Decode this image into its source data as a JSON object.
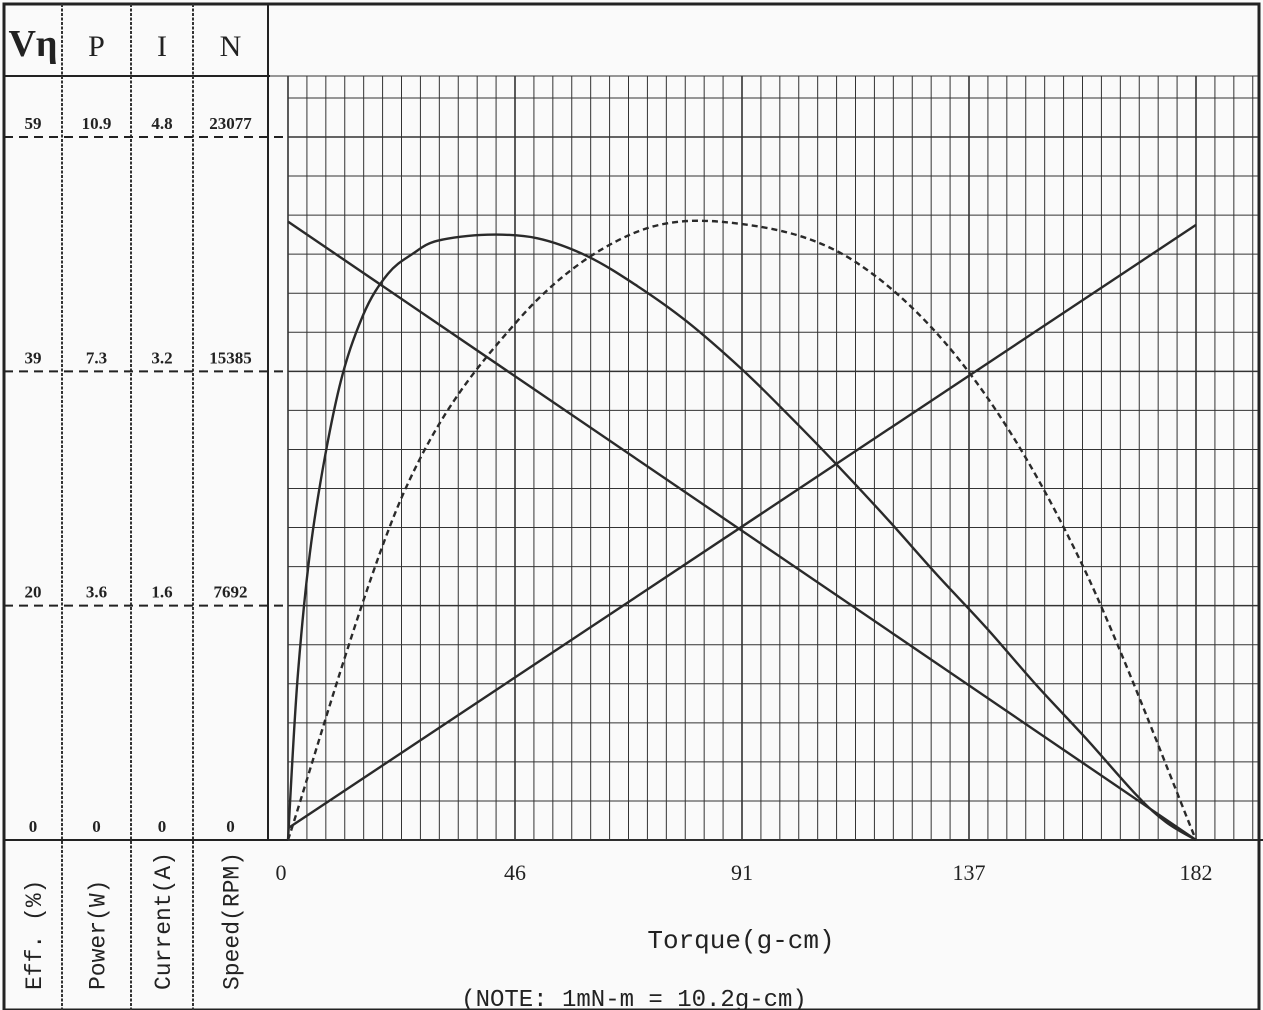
{
  "chart_data": {
    "type": "line",
    "xlabel": "Torque(g-cm)",
    "note": "(NOTE: 1mN-m = 10.2g-cm)",
    "x_ticks": [
      "0",
      "46",
      "91",
      "137",
      "182"
    ],
    "xlim": [
      0,
      182
    ],
    "axes": [
      {
        "symbol": "Vη",
        "name": "Eff. (%)",
        "ticks": [
          "0",
          "20",
          "39",
          "59"
        ],
        "max": 59
      },
      {
        "symbol": "P",
        "name": "Power(W)",
        "ticks": [
          "0",
          "3.6",
          "7.3",
          "10.9"
        ],
        "max": 10.9
      },
      {
        "symbol": "I",
        "name": "Current(A)",
        "ticks": [
          "0",
          "1.6",
          "3.2",
          "4.8"
        ],
        "max": 4.8
      },
      {
        "symbol": "N",
        "name": "Speed(RPM)",
        "ticks": [
          "0",
          "7692",
          "15385",
          "23077"
        ],
        "max": 23077
      }
    ],
    "series": [
      {
        "id": "speed",
        "axis": "Speed(RPM)",
        "style": "solid",
        "x": [
          0,
          182
        ],
        "y": [
          20300,
          0
        ]
      },
      {
        "id": "current",
        "axis": "Current(A)",
        "style": "solid",
        "x": [
          0,
          182
        ],
        "y": [
          0.08,
          4.2
        ]
      },
      {
        "id": "efficiency",
        "axis": "Eff. (%)",
        "style": "solid",
        "x": [
          0,
          2,
          5,
          10,
          15,
          20,
          25,
          30,
          40,
          50,
          60,
          70,
          80,
          91,
          100,
          110,
          120,
          130,
          140,
          150,
          160,
          170,
          176,
          182
        ],
        "y": [
          0,
          14,
          26,
          37.5,
          44,
          47.5,
          49.2,
          50.3,
          50.8,
          50.5,
          49,
          46.5,
          43.5,
          39.5,
          35.8,
          31.5,
          27,
          22.3,
          17.8,
          13,
          8.5,
          3.8,
          1.5,
          0
        ]
      },
      {
        "id": "power",
        "axis": "Power(W)",
        "style": "dashed",
        "x": [
          0,
          23,
          46,
          69,
          91,
          114,
          137,
          159,
          182
        ],
        "y": [
          0,
          5.35,
          8.05,
          9.4,
          9.55,
          8.95,
          7.2,
          4.3,
          0
        ]
      }
    ]
  }
}
